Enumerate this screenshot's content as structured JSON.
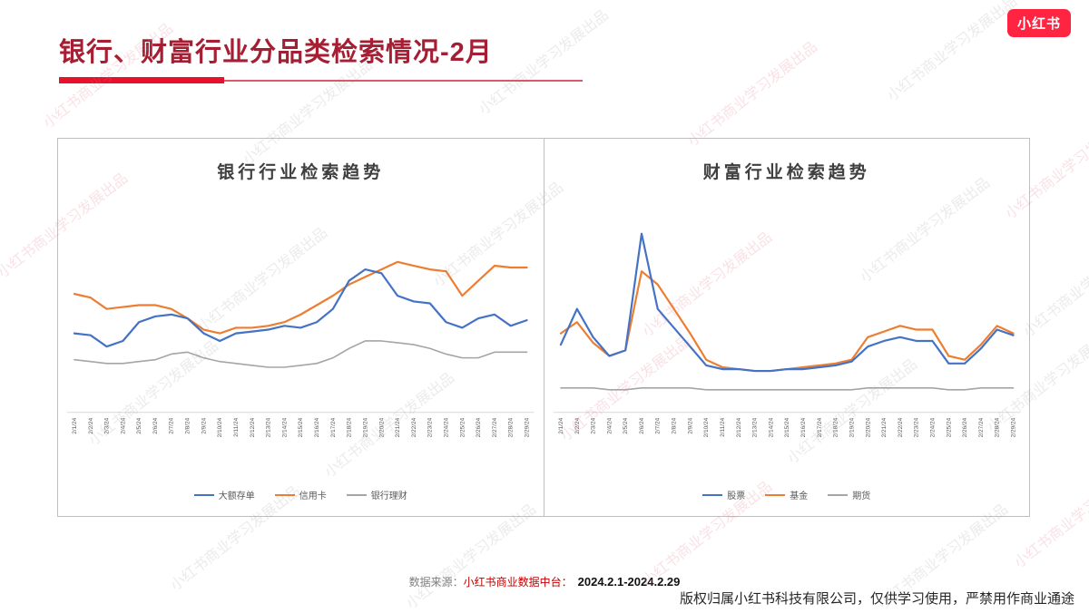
{
  "logo": {
    "text": "小红书",
    "color": "#FF2442"
  },
  "header": {
    "title": "银行、财富行业分品类检索情况-2月"
  },
  "watermark": {
    "text": "小红书商业学习发展出品"
  },
  "footer": {
    "source_label": "数据来源：",
    "source_name": "小红书商业数据中台：",
    "date_range": "2024.2.1-2024.2.29",
    "copyright": "版权归属小红书科技有限公司，仅供学习使用，严禁用作商业通途"
  },
  "colors": {
    "blue": "#4472C4",
    "orange": "#ED7D31",
    "gray": "#A5A5A5",
    "accent_red": "#E8112D",
    "title_red": "#A61E33"
  },
  "chart_data": [
    {
      "type": "line",
      "title": "银行行业检索趋势",
      "xlabel": "",
      "ylabel": "",
      "ylim": [
        0,
        100
      ],
      "grid": false,
      "legend_position": "bottom",
      "categories": [
        "2/1/24",
        "2/2/24",
        "2/3/24",
        "2/4/24",
        "2/5/24",
        "2/6/24",
        "2/7/24",
        "2/8/24",
        "2/9/24",
        "2/10/24",
        "2/11/24",
        "2/12/24",
        "2/13/24",
        "2/14/24",
        "2/15/24",
        "2/16/24",
        "2/17/24",
        "2/18/24",
        "2/19/24",
        "2/20/24",
        "2/21/24",
        "2/22/24",
        "2/23/24",
        "2/24/24",
        "2/25/24",
        "2/26/24",
        "2/27/24",
        "2/28/24",
        "2/29/24"
      ],
      "series": [
        {
          "name": "大额存单",
          "color": "#4472C4",
          "values": [
            42,
            41,
            35,
            38,
            48,
            51,
            52,
            50,
            42,
            38,
            42,
            43,
            44,
            46,
            45,
            48,
            55,
            70,
            76,
            74,
            62,
            59,
            58,
            48,
            45,
            50,
            52,
            46,
            49
          ]
        },
        {
          "name": "信用卡",
          "color": "#ED7D31",
          "values": [
            63,
            61,
            55,
            56,
            57,
            57,
            55,
            50,
            44,
            42,
            45,
            45,
            46,
            48,
            52,
            57,
            62,
            68,
            72,
            76,
            80,
            78,
            76,
            75,
            62,
            70,
            78,
            77,
            77
          ]
        },
        {
          "name": "银行理财",
          "color": "#A5A5A5",
          "values": [
            28,
            27,
            26,
            26,
            27,
            28,
            31,
            32,
            29,
            27,
            26,
            25,
            24,
            24,
            25,
            26,
            29,
            34,
            38,
            38,
            37,
            36,
            34,
            31,
            29,
            29,
            32,
            32,
            32
          ]
        }
      ]
    },
    {
      "type": "line",
      "title": "财富行业检索趋势",
      "xlabel": "",
      "ylabel": "",
      "ylim": [
        0,
        100
      ],
      "grid": false,
      "legend_position": "bottom",
      "categories": [
        "2/1/24",
        "2/2/24",
        "2/3/24",
        "2/4/24",
        "2/5/24",
        "2/6/24",
        "2/7/24",
        "2/8/24",
        "2/9/24",
        "2/10/24",
        "2/11/24",
        "2/12/24",
        "2/13/24",
        "2/14/24",
        "2/15/24",
        "2/16/24",
        "2/17/24",
        "2/18/24",
        "2/19/24",
        "2/20/24",
        "2/21/24",
        "2/22/24",
        "2/23/24",
        "2/24/24",
        "2/25/24",
        "2/26/24",
        "2/27/24",
        "2/28/24",
        "2/29/24"
      ],
      "series": [
        {
          "name": "股票",
          "color": "#4472C4",
          "values": [
            36,
            55,
            40,
            30,
            33,
            95,
            55,
            45,
            35,
            25,
            23,
            23,
            22,
            22,
            23,
            23,
            24,
            25,
            27,
            35,
            38,
            40,
            38,
            38,
            26,
            26,
            34,
            44,
            41
          ]
        },
        {
          "name": "基金",
          "color": "#ED7D31",
          "values": [
            42,
            48,
            37,
            30,
            33,
            75,
            68,
            55,
            42,
            28,
            24,
            23,
            22,
            22,
            23,
            24,
            25,
            26,
            28,
            40,
            43,
            46,
            44,
            44,
            30,
            28,
            36,
            46,
            42
          ]
        },
        {
          "name": "期货",
          "color": "#A5A5A5",
          "values": [
            13,
            13,
            13,
            12,
            12,
            13,
            13,
            13,
            13,
            12,
            12,
            12,
            12,
            12,
            12,
            12,
            12,
            12,
            12,
            13,
            13,
            13,
            13,
            13,
            12,
            12,
            13,
            13,
            13
          ]
        }
      ]
    }
  ]
}
